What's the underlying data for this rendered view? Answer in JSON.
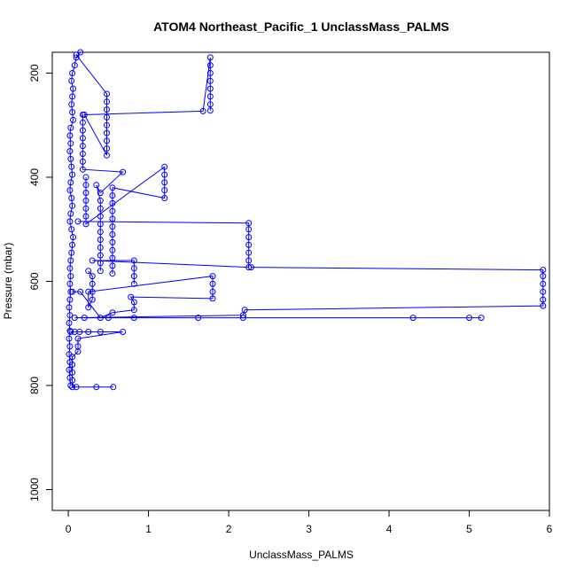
{
  "chart_data": {
    "type": "scatter",
    "title": "ATOM4 Northeast_Pacific_1 UnclassMass_PALMS",
    "xlabel": "UnclassMass_PALMS",
    "ylabel": "Pressure (mbar)",
    "xlim": [
      -0.2,
      6.0
    ],
    "ylim": [
      1040,
      160
    ],
    "y_reversed": true,
    "grid": false,
    "legend": "none",
    "x_ticks": [
      0,
      1,
      2,
      3,
      4,
      5,
      6
    ],
    "y_ticks": [
      200,
      400,
      600,
      800,
      1000
    ],
    "color": "#0000ff",
    "marker": "open-circle",
    "series": [
      {
        "points": [
          [
            0.15,
            160
          ],
          [
            0.1,
            170
          ],
          [
            0.08,
            185
          ],
          [
            0.05,
            200
          ],
          [
            0.04,
            215
          ],
          [
            0.06,
            230
          ],
          [
            0.05,
            245
          ],
          [
            0.04,
            260
          ],
          [
            0.05,
            275
          ],
          [
            0.06,
            290
          ],
          [
            0.03,
            305
          ],
          [
            0.02,
            320
          ],
          [
            0.03,
            335
          ],
          [
            0.02,
            350
          ],
          [
            0.03,
            365
          ],
          [
            0.04,
            380
          ],
          [
            0.05,
            395
          ],
          [
            0.03,
            410
          ],
          [
            0.02,
            425
          ],
          [
            0.04,
            440
          ],
          [
            0.05,
            455
          ],
          [
            0.03,
            470
          ],
          [
            0.02,
            485
          ],
          [
            0.04,
            500
          ],
          [
            0.06,
            515
          ],
          [
            0.05,
            530
          ],
          [
            0.04,
            545
          ],
          [
            0.03,
            560
          ],
          [
            0.02,
            575
          ],
          [
            0.03,
            590
          ],
          [
            0.02,
            605
          ],
          [
            0.03,
            620
          ],
          [
            0.02,
            635
          ],
          [
            0.01,
            650
          ],
          [
            0.02,
            665
          ],
          [
            0.01,
            680
          ],
          [
            0.02,
            695
          ],
          [
            0.01,
            710
          ],
          [
            0.02,
            725
          ],
          [
            0.01,
            740
          ],
          [
            0.02,
            755
          ],
          [
            0.01,
            770
          ],
          [
            0.02,
            785
          ],
          [
            0.03,
            800
          ]
        ]
      },
      {
        "points": [
          [
            0.1,
            165
          ],
          [
            0.48,
            240
          ],
          [
            0.48,
            255
          ],
          [
            0.48,
            270
          ],
          [
            0.48,
            285
          ],
          [
            0.48,
            300
          ],
          [
            0.48,
            315
          ],
          [
            0.48,
            330
          ],
          [
            0.48,
            345
          ],
          [
            0.48,
            358
          ],
          [
            0.2,
            280
          ],
          [
            1.68,
            273
          ],
          [
            1.77,
            170
          ],
          [
            1.77,
            185
          ],
          [
            1.77,
            200
          ],
          [
            1.77,
            215
          ],
          [
            1.77,
            230
          ],
          [
            1.77,
            245
          ],
          [
            1.77,
            260
          ],
          [
            1.77,
            272
          ]
        ]
      },
      {
        "points": [
          [
            0.18,
            280
          ],
          [
            0.18,
            295
          ],
          [
            0.18,
            310
          ],
          [
            0.18,
            325
          ],
          [
            0.18,
            340
          ],
          [
            0.18,
            355
          ],
          [
            0.18,
            370
          ],
          [
            0.18,
            385
          ],
          [
            0.68,
            390
          ],
          [
            0.4,
            430
          ],
          [
            0.35,
            415
          ],
          [
            0.4,
            445
          ],
          [
            0.4,
            460
          ],
          [
            0.4,
            475
          ],
          [
            0.4,
            490
          ],
          [
            0.4,
            505
          ],
          [
            0.4,
            520
          ],
          [
            0.4,
            535
          ],
          [
            0.4,
            550
          ],
          [
            0.4,
            565
          ],
          [
            0.4,
            580
          ]
        ]
      },
      {
        "points": [
          [
            0.22,
            400
          ],
          [
            0.22,
            415
          ],
          [
            0.22,
            430
          ],
          [
            0.22,
            445
          ],
          [
            0.22,
            460
          ],
          [
            0.22,
            475
          ],
          [
            0.22,
            490
          ],
          [
            1.2,
            380
          ],
          [
            1.2,
            395
          ],
          [
            1.2,
            410
          ],
          [
            1.2,
            425
          ],
          [
            1.2,
            440
          ],
          [
            0.55,
            420
          ],
          [
            0.55,
            435
          ],
          [
            0.55,
            450
          ],
          [
            0.55,
            465
          ],
          [
            0.55,
            480
          ],
          [
            0.55,
            495
          ],
          [
            0.55,
            510
          ],
          [
            0.55,
            525
          ],
          [
            0.55,
            540
          ],
          [
            0.55,
            555
          ],
          [
            0.55,
            570
          ],
          [
            0.55,
            585
          ]
        ]
      },
      {
        "points": [
          [
            0.12,
            485
          ],
          [
            2.25,
            488
          ],
          [
            2.25,
            500
          ],
          [
            2.25,
            515
          ],
          [
            2.25,
            530
          ],
          [
            2.25,
            545
          ],
          [
            2.25,
            560
          ],
          [
            2.25,
            573
          ],
          [
            0.3,
            560
          ],
          [
            0.82,
            560
          ],
          [
            0.82,
            575
          ],
          [
            0.82,
            590
          ],
          [
            0.82,
            605
          ]
        ]
      },
      {
        "points": [
          [
            2.28,
            573
          ],
          [
            5.92,
            578
          ],
          [
            5.92,
            590
          ],
          [
            5.92,
            605
          ],
          [
            5.92,
            620
          ],
          [
            5.92,
            635
          ],
          [
            5.92,
            647
          ],
          [
            2.2,
            655
          ],
          [
            2.18,
            665
          ],
          [
            0.08,
            670
          ],
          [
            0.2,
            670
          ],
          [
            0.5,
            670
          ],
          [
            0.82,
            670
          ],
          [
            1.62,
            670
          ],
          [
            2.18,
            670
          ],
          [
            4.3,
            670
          ],
          [
            5.0,
            670
          ],
          [
            5.15,
            670
          ]
        ]
      },
      {
        "points": [
          [
            0.25,
            580
          ],
          [
            0.3,
            590
          ],
          [
            0.3,
            605
          ],
          [
            0.3,
            620
          ],
          [
            0.3,
            635
          ],
          [
            0.25,
            650
          ],
          [
            0.25,
            620
          ],
          [
            1.8,
            590
          ],
          [
            1.8,
            605
          ],
          [
            1.8,
            620
          ],
          [
            1.8,
            633
          ],
          [
            0.78,
            630
          ],
          [
            0.82,
            640
          ],
          [
            0.82,
            655
          ],
          [
            0.55,
            660
          ],
          [
            0.4,
            670
          ],
          [
            0.15,
            620
          ],
          [
            0.05,
            620
          ]
        ]
      },
      {
        "points": [
          [
            0.03,
            697
          ],
          [
            0.08,
            697
          ],
          [
            0.14,
            697
          ],
          [
            0.25,
            697
          ],
          [
            0.4,
            697
          ],
          [
            0.68,
            697
          ],
          [
            0.12,
            710
          ],
          [
            0.12,
            725
          ],
          [
            0.12,
            735
          ],
          [
            0.05,
            745
          ],
          [
            0.05,
            760
          ],
          [
            0.05,
            775
          ],
          [
            0.05,
            790
          ],
          [
            0.05,
            803
          ],
          [
            0.1,
            803
          ],
          [
            0.35,
            803
          ],
          [
            0.56,
            803
          ]
        ]
      }
    ]
  }
}
